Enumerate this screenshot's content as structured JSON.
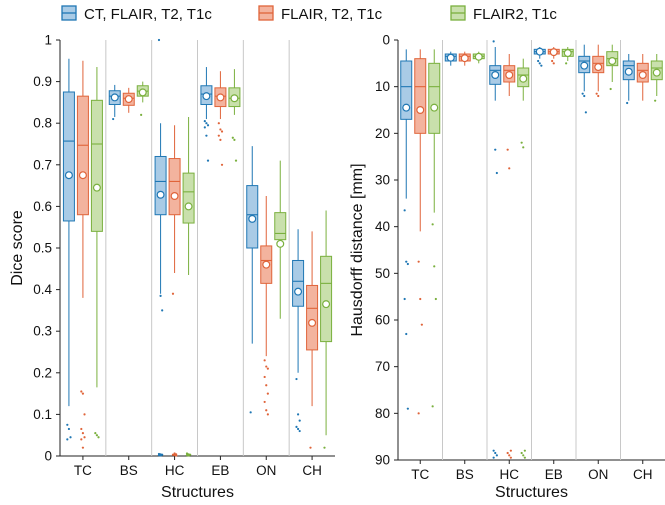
{
  "legend": [
    {
      "label": "CT, FLAIR, T2, T1c",
      "color": "#1f77b4",
      "fill": "#a9cbe6"
    },
    {
      "label": "FLAIR, T2, T1c",
      "color": "#e0643a",
      "fill": "#f3b39e"
    },
    {
      "label": "FLAIR2, T1c",
      "color": "#7ab03e",
      "fill": "#c9e0ac"
    }
  ],
  "chart_data": [
    {
      "type": "box",
      "xlabel": "Structures",
      "ylabel": "Dice score",
      "ylim": [
        0,
        1
      ],
      "yticks": [
        "0",
        "0.1",
        "0.2",
        "0.3",
        "0.4",
        "0.5",
        "0.6",
        "0.7",
        "0.8",
        "0.9",
        "1"
      ],
      "categories": [
        "TC",
        "BS",
        "HC",
        "EB",
        "ON",
        "CH"
      ],
      "grid": "vertical separators between categories",
      "series": [
        {
          "name": "CT, FLAIR, T2, T1c",
          "boxes": [
            {
              "whisker_low": 0.12,
              "q1": 0.565,
              "median": 0.757,
              "q3": 0.875,
              "whisker_high": 0.955,
              "mean": 0.675,
              "outliers": [
                0.075,
                0.065,
                0.045,
                0.04
              ]
            },
            {
              "whisker_low": 0.815,
              "q1": 0.845,
              "median": 0.865,
              "q3": 0.878,
              "whisker_high": 0.892,
              "mean": 0.862,
              "outliers": [
                0.81
              ]
            },
            {
              "whisker_low": 0.39,
              "q1": 0.58,
              "median": 0.66,
              "q3": 0.72,
              "whisker_high": 0.8,
              "mean": 0.628,
              "outliers": [
                1.0,
                0.385,
                0.35,
                0.005,
                0.004,
                0.003,
                0.002,
                0.001
              ]
            },
            {
              "whisker_low": 0.81,
              "q1": 0.845,
              "median": 0.87,
              "q3": 0.89,
              "whisker_high": 0.935,
              "mean": 0.865,
              "outliers": [
                0.805,
                0.8,
                0.795,
                0.79,
                0.77,
                0.71
              ]
            },
            {
              "whisker_low": 0.27,
              "q1": 0.5,
              "median": 0.58,
              "q3": 0.65,
              "whisker_high": 0.745,
              "mean": 0.57,
              "outliers": [
                0.105
              ]
            },
            {
              "whisker_low": 0.2,
              "q1": 0.36,
              "median": 0.42,
              "q3": 0.47,
              "whisker_high": 0.545,
              "mean": 0.395,
              "outliers": [
                0.185,
                0.1,
                0.085,
                0.07,
                0.065,
                0.06
              ]
            }
          ]
        },
        {
          "name": "FLAIR, T2, T1c",
          "boxes": [
            {
              "whisker_low": 0.38,
              "q1": 0.58,
              "median": 0.747,
              "q3": 0.865,
              "whisker_high": 0.95,
              "mean": 0.675,
              "outliers": [
                0.155,
                0.15,
                0.1,
                0.065,
                0.055,
                0.045,
                0.04,
                0.02
              ]
            },
            {
              "whisker_low": 0.825,
              "q1": 0.843,
              "median": 0.86,
              "q3": 0.872,
              "whisker_high": 0.885,
              "mean": 0.858,
              "outliers": []
            },
            {
              "whisker_low": 0.44,
              "q1": 0.58,
              "median": 0.66,
              "q3": 0.715,
              "whisker_high": 0.795,
              "mean": 0.625,
              "outliers": [
                0.39,
                0.006,
                0.004,
                0.003,
                0.002,
                0.001
              ]
            },
            {
              "whisker_low": 0.81,
              "q1": 0.84,
              "median": 0.865,
              "q3": 0.885,
              "whisker_high": 0.925,
              "mean": 0.862,
              "outliers": [
                0.8,
                0.785,
                0.78,
                0.77,
                0.76,
                0.7
              ]
            },
            {
              "whisker_low": 0.24,
              "q1": 0.415,
              "median": 0.47,
              "q3": 0.505,
              "whisker_high": 0.625,
              "mean": 0.46,
              "outliers": [
                0.23,
                0.215,
                0.21,
                0.19,
                0.17,
                0.15,
                0.13,
                0.11,
                0.1
              ]
            },
            {
              "whisker_low": 0.12,
              "q1": 0.255,
              "median": 0.355,
              "q3": 0.41,
              "whisker_high": 0.54,
              "mean": 0.32,
              "outliers": [
                0.02
              ]
            }
          ]
        },
        {
          "name": "FLAIR2, T1c",
          "boxes": [
            {
              "whisker_low": 0.165,
              "q1": 0.54,
              "median": 0.75,
              "q3": 0.855,
              "whisker_high": 0.935,
              "mean": 0.645,
              "outliers": [
                0.055,
                0.05,
                0.045
              ]
            },
            {
              "whisker_low": 0.85,
              "q1": 0.865,
              "median": 0.877,
              "q3": 0.89,
              "whisker_high": 0.9,
              "mean": 0.874,
              "outliers": [
                0.82
              ]
            },
            {
              "whisker_low": 0.435,
              "q1": 0.56,
              "median": 0.635,
              "q3": 0.68,
              "whisker_high": 0.815,
              "mean": 0.6,
              "outliers": [
                0.006,
                0.004,
                0.003,
                0.002,
                0.001
              ]
            },
            {
              "whisker_low": 0.82,
              "q1": 0.84,
              "median": 0.86,
              "q3": 0.885,
              "whisker_high": 0.93,
              "mean": 0.86,
              "outliers": [
                0.765,
                0.76,
                0.71
              ]
            },
            {
              "whisker_low": 0.33,
              "q1": 0.52,
              "median": 0.535,
              "q3": 0.585,
              "whisker_high": 0.71,
              "mean": 0.51,
              "outliers": []
            },
            {
              "whisker_low": 0.05,
              "q1": 0.275,
              "median": 0.415,
              "q3": 0.48,
              "whisker_high": 0.59,
              "mean": 0.365,
              "outliers": [
                0.02
              ]
            }
          ]
        }
      ]
    },
    {
      "type": "box",
      "xlabel": "Structures",
      "ylabel": "Hausdorff distance [mm]",
      "ylim": [
        0,
        90
      ],
      "y_inverted": true,
      "yticks": [
        "0",
        "10",
        "20",
        "30",
        "40",
        "50",
        "60",
        "70",
        "80",
        "90"
      ],
      "categories": [
        "TC",
        "BS",
        "HC",
        "EB",
        "ON",
        "CH"
      ],
      "grid": "vertical separators between categories",
      "series": [
        {
          "name": "CT, FLAIR, T2, T1c",
          "boxes": [
            {
              "whisker_low": 2,
              "q1": 4.5,
              "median": 10,
              "q3": 17,
              "whisker_high": 34,
              "mean": 14.5,
              "outliers": [
                36.5,
                47.5,
                48,
                55.5,
                63,
                79
              ]
            },
            {
              "whisker_low": 2.5,
              "q1": 3,
              "median": 3.5,
              "q3": 4.5,
              "whisker_high": 5.5,
              "mean": 3.8,
              "outliers": []
            },
            {
              "whisker_low": 1.5,
              "q1": 5.5,
              "median": 6.5,
              "q3": 9.5,
              "whisker_high": 13,
              "mean": 7.5,
              "outliers": [
                0.3,
                23.5,
                28.5,
                88,
                88.5,
                89,
                89.5
              ]
            },
            {
              "whisker_low": 1.5,
              "q1": 2,
              "median": 2.5,
              "q3": 3,
              "whisker_high": 4,
              "mean": 2.5,
              "outliers": [
                4.5,
                5,
                5.5
              ]
            },
            {
              "whisker_low": 1,
              "q1": 3.5,
              "median": 4.5,
              "q3": 7,
              "whisker_high": 11,
              "mean": 5.5,
              "outliers": [
                11.5,
                12,
                15.5
              ]
            },
            {
              "whisker_low": 3,
              "q1": 4.5,
              "median": 5.5,
              "q3": 8.5,
              "whisker_high": 13,
              "mean": 6.8,
              "outliers": [
                13.5
              ]
            }
          ]
        },
        {
          "name": "FLAIR, T2, T1c",
          "boxes": [
            {
              "whisker_low": 2,
              "q1": 4,
              "median": 10,
              "q3": 20,
              "whisker_high": 41,
              "mean": 15,
              "outliers": [
                47.5,
                55.5,
                61,
                80
              ]
            },
            {
              "whisker_low": 2.5,
              "q1": 3,
              "median": 3.5,
              "q3": 4.5,
              "whisker_high": 5.5,
              "mean": 3.9,
              "outliers": []
            },
            {
              "whisker_low": 3,
              "q1": 5.5,
              "median": 6.5,
              "q3": 9,
              "whisker_high": 12,
              "mean": 7.5,
              "outliers": [
                23.5,
                27.5,
                88,
                88.5,
                89,
                89.5
              ]
            },
            {
              "whisker_low": 1.5,
              "q1": 2,
              "median": 2.5,
              "q3": 3,
              "whisker_high": 4,
              "mean": 2.6,
              "outliers": [
                4.5,
                5
              ]
            },
            {
              "whisker_low": 1,
              "q1": 3.5,
              "median": 5,
              "q3": 7,
              "whisker_high": 11,
              "mean": 5.8,
              "outliers": [
                11.5,
                12
              ]
            },
            {
              "whisker_low": 3,
              "q1": 5,
              "median": 6.5,
              "q3": 9,
              "whisker_high": 13,
              "mean": 7.5,
              "outliers": []
            }
          ]
        },
        {
          "name": "FLAIR2, T1c",
          "boxes": [
            {
              "whisker_low": 2,
              "q1": 5,
              "median": 10,
              "q3": 20,
              "whisker_high": 37,
              "mean": 14.5,
              "outliers": [
                39.5,
                48.5,
                55.5,
                78.5
              ]
            },
            {
              "whisker_low": 2.5,
              "q1": 3,
              "median": 3.5,
              "q3": 4,
              "whisker_high": 5,
              "mean": 3.6,
              "outliers": []
            },
            {
              "whisker_low": 4,
              "q1": 6,
              "median": 7.5,
              "q3": 10,
              "whisker_high": 13,
              "mean": 8.3,
              "outliers": [
                22,
                23,
                88,
                88.5,
                89,
                89.5
              ]
            },
            {
              "whisker_low": 1.5,
              "q1": 2,
              "median": 2.5,
              "q3": 3.5,
              "whisker_high": 4.5,
              "mean": 2.8,
              "outliers": [
                5
              ]
            },
            {
              "whisker_low": 1,
              "q1": 2.5,
              "median": 4,
              "q3": 5.5,
              "whisker_high": 9,
              "mean": 4.5,
              "outliers": [
                10.5
              ]
            },
            {
              "whisker_low": 3,
              "q1": 4.5,
              "median": 6,
              "q3": 8.5,
              "whisker_high": 12,
              "mean": 7,
              "outliers": [
                13
              ]
            }
          ]
        }
      ]
    }
  ]
}
